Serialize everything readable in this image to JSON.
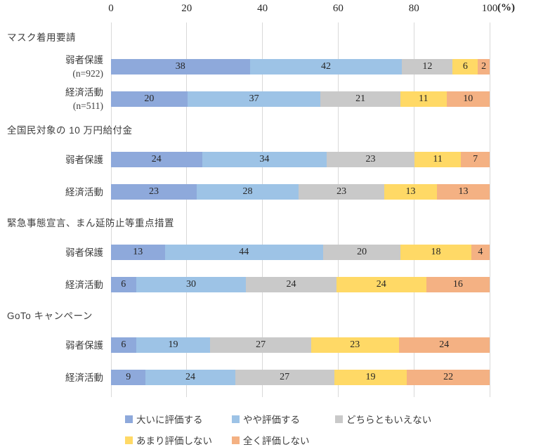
{
  "chart_data": {
    "type": "bar",
    "subtype": "stacked-horizontal-percent",
    "title": "",
    "unit_label": "(%)",
    "x_axis": {
      "ticks": [
        0,
        20,
        40,
        60,
        80,
        100
      ],
      "min": 0,
      "max": 100,
      "grid": true
    },
    "series": [
      {
        "name": "大いに評価する",
        "color": "#8EA9DB"
      },
      {
        "name": "やや評価する",
        "color": "#9DC3E6"
      },
      {
        "name": "どちらともいえない",
        "color": "#C9C9C9"
      },
      {
        "name": "あまり評価しない",
        "color": "#FFD966"
      },
      {
        "name": "全く評価しない",
        "color": "#F4B183"
      }
    ],
    "groups": [
      {
        "label": "マスク着用要請",
        "rows": [
          {
            "label": "弱者保護",
            "sublabel": "(n=922)",
            "values": [
              38,
              42,
              12,
              6,
              2
            ]
          },
          {
            "label": "経済活動",
            "sublabel": "(n=511)",
            "values": [
              20,
              37,
              21,
              11,
              10
            ]
          }
        ]
      },
      {
        "label": "全国民対象の 10 万円給付金",
        "rows": [
          {
            "label": "弱者保護",
            "sublabel": "",
            "values": [
              24,
              34,
              23,
              11,
              7
            ]
          },
          {
            "label": "経済活動",
            "sublabel": "",
            "values": [
              23,
              28,
              23,
              13,
              13
            ]
          }
        ]
      },
      {
        "label": "緊急事態宣言、まん延防止等重点措置",
        "rows": [
          {
            "label": "弱者保護",
            "sublabel": "",
            "values": [
              13,
              44,
              20,
              18,
              4
            ]
          },
          {
            "label": "経済活動",
            "sublabel": "",
            "values": [
              6,
              30,
              24,
              24,
              16
            ]
          }
        ]
      },
      {
        "label": "GoTo キャンペーン",
        "rows": [
          {
            "label": "弱者保護",
            "sublabel": "",
            "values": [
              6,
              19,
              27,
              23,
              24
            ]
          },
          {
            "label": "経済活動",
            "sublabel": "",
            "values": [
              9,
              24,
              27,
              19,
              22
            ]
          }
        ]
      }
    ],
    "legend": {
      "position": "bottom",
      "columns": 3
    }
  },
  "colors": {
    "grid": "#D9D9D9",
    "label_text": "#3D3D3D",
    "value_text": "#262626",
    "background": "#FFFFFF"
  }
}
